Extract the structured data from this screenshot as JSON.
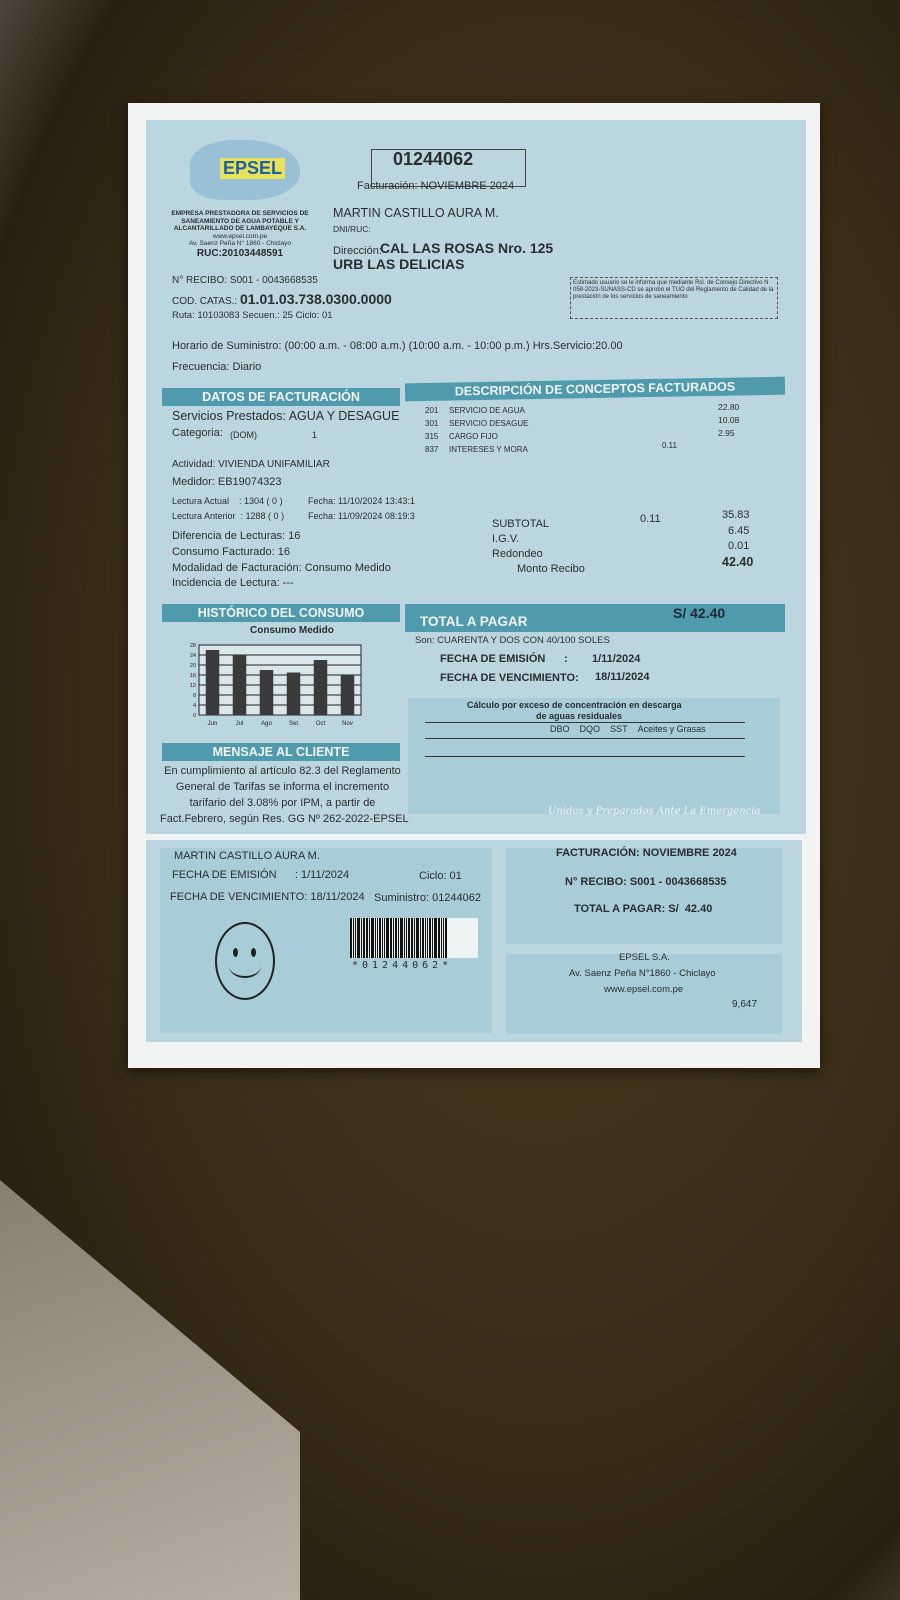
{
  "header": {
    "supply_number": "01244062",
    "billing_period": "Facturación: NOVIEMBRE 2024",
    "company_lines": [
      "EMPRESA PRESTADORA DE SERVICIOS DE",
      "SANEAMIENTO DE AGUA POTABLE Y",
      "ALCANTARILLADO DE LAMBAYEQUE S.A.",
      "www.epsel.com.pe",
      "Av. Saenz Peña N° 1860 - Chiclayo"
    ],
    "ruc": "RUC:20103448591",
    "logo_text": "EPSEL S.A."
  },
  "customer": {
    "name": "MARTIN CASTILLO AURA M.",
    "dni_label": "DNI/RUC:",
    "address_label": "Dirección:",
    "address_1": "CAL LAS ROSAS Nro. 125",
    "address_2": "URB LAS DELICIAS"
  },
  "account": {
    "recibo": "N° RECIBO: S001 - 0043668535",
    "cod_catas_label": "COD. CATAS.:",
    "cod_catas": "01.01.03.738.0300.0000",
    "ruta": "Ruta: 10103083  Secuen.: 25  Ciclo: 01",
    "horario": "Horario de Suministro: (00:00 a.m. - 08:00 a.m.) (10:00 a.m. - 10:00 p.m.) Hrs.Servicio:20.00",
    "frecuencia": "Frecuencia: Diario"
  },
  "notice": "Estimado usuario se le informa que mediante Rsl. de Consejo Directivo N 058-2023-SUNASS-CD se aprobó el TUO del Reglamento de Calidad de la prestación de los servicios de saneamiento",
  "datos": {
    "title": "DATOS DE FACTURACIÓN",
    "servicios": "Servicios Prestados: AGUA Y DESAGUE",
    "categoria_label": "Categoria:",
    "categoria": "(DOM)",
    "categoria_n": "1",
    "actividad": "Actividad:  VIVIENDA UNIFAMILIAR",
    "medidor": "Medidor: EB19074323",
    "lectura_actual": "Lectura Actual    : 1304 ( 0 )",
    "fecha_actual": "Fecha: 11/10/2024  13:43:1",
    "lectura_anterior": "Lectura Anterior  : 1288 ( 0 )",
    "fecha_anterior": "Fecha: 11/09/2024  08:19:3",
    "diferencia": "Diferencia de Lecturas: 16",
    "consumo": "Consumo Facturado: 16",
    "modalidad": "Modalidad de Facturación: Consumo Medido",
    "incidencia": "Incidencia de Lectura: ---"
  },
  "conceptos": {
    "title": "DESCRIPCIÓN DE CONCEPTOS FACTURADOS",
    "items": [
      {
        "code": "201",
        "desc": "SERVICIO DE AGUA",
        "amount": "22.80",
        "other": ""
      },
      {
        "code": "301",
        "desc": "SERVICIO DESAGUE",
        "amount": "10.08",
        "other": ""
      },
      {
        "code": "315",
        "desc": "CARGO FIJO",
        "amount": "2.95",
        "other": ""
      },
      {
        "code": "837",
        "desc": "INTERESES Y MORA",
        "amount": "",
        "other": "0.11"
      }
    ],
    "subtotal_label": "SUBTOTAL",
    "subtotal_other": "0.11",
    "subtotal": "35.83",
    "igv_label": "I.G.V.",
    "igv": "6.45",
    "redondeo_label": "Redondeo",
    "redondeo": "0.01",
    "monto_label": "Monto Recibo",
    "monto": "42.40"
  },
  "historico": {
    "title": "HISTÓRICO DEL CONSUMO"
  },
  "chart_data": {
    "type": "bar",
    "title": "Consumo Medido",
    "categories": [
      "Jun",
      "Jul",
      "Ago",
      "Set",
      "Oct",
      "Nov"
    ],
    "values": [
      26,
      24,
      18,
      17,
      22,
      16
    ],
    "ylim": [
      0,
      28
    ],
    "yticks": [
      0,
      4,
      8,
      12,
      16,
      20,
      24,
      28
    ],
    "grid": true
  },
  "total": {
    "title": "TOTAL A PAGAR",
    "amount": "S/ 42.40",
    "son": "Son: CUARENTA Y DOS CON 40/100 SOLES",
    "emision_label": "FECHA DE EMISIÓN",
    "emision": "1/11/2024",
    "venc_label": "FECHA DE VENCIMIENTO:",
    "venc": "18/11/2024"
  },
  "calculo": {
    "title_1": "Cálculo por exceso de concentración en descarga",
    "title_2": "de aguas residuales",
    "cols": [
      "DBO",
      "DQO",
      "SST",
      "Aceites y Grasas"
    ]
  },
  "mensaje": {
    "title": "MENSAJE AL CLIENTE",
    "lines": [
      "En cumplimiento al artículo 82.3 del Reglamento",
      "General de Tarifas se informa el incremento",
      "tarifario del 3.08% por IPM, a partir de",
      "Fact.Febrero, según Res. GG Nº 262-2022-EPSEL"
    ]
  },
  "motto": "Unidos y Preparados Ante La Emergencia",
  "stub": {
    "name": "MARTIN CASTILLO AURA M.",
    "emision": "FECHA DE EMISIÓN      : 1/11/2024",
    "ciclo": "Ciclo: 01",
    "venc": "FECHA DE VENCIMIENTO: 18/11/2024",
    "suministro": "Suministro: 01244062",
    "barcode_text": "*01244062*",
    "facturacion": "FACTURACIÓN: NOVIEMBRE 2024",
    "recibo": "N° RECIBO: S001 - 0043668535",
    "total": "TOTAL A PAGAR: S/  42.40",
    "company": "EPSEL S.A.",
    "address": "Av. Saenz Peña N°1860 - Chiclayo",
    "web": "www.epsel.com.pe",
    "serial": "9,647"
  },
  "colors": {
    "band": "#4f9aac",
    "paper_blue": "#bcd6e0",
    "table": "#3a2c18"
  }
}
